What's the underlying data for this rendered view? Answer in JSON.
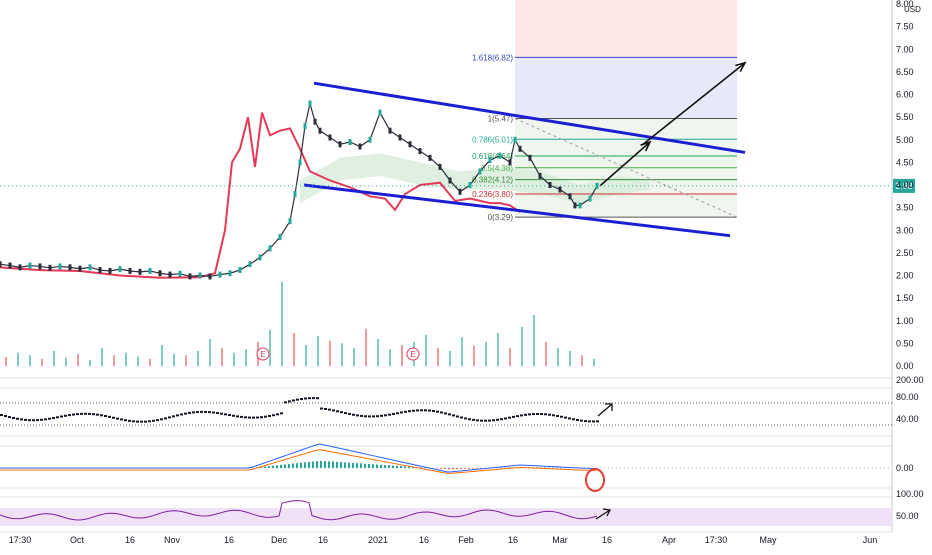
{
  "chart_data": {
    "type": "candlestick",
    "currency_label": "USD",
    "price_axis": {
      "range": [
        0,
        8
      ],
      "ticks": [
        "8.00",
        "7.50",
        "7.00",
        "6.50",
        "6.00",
        "5.50",
        "5.00",
        "4.50",
        "4.00",
        "3.50",
        "3.00",
        "2.50",
        "2.00",
        "1.50",
        "1.00",
        "0.50",
        "0.00"
      ],
      "current_price": "3.98"
    },
    "time_axis": {
      "labels": [
        "17:30",
        "Oct",
        "16",
        "Nov",
        "16",
        "Dec",
        "16",
        "2021",
        "16",
        "Feb",
        "16",
        "Mar",
        "16",
        "Apr",
        "17:30",
        "May",
        "Jun"
      ]
    },
    "fibonacci": {
      "levels": [
        {
          "label": "1.618(6.82)",
          "value": 6.82,
          "color": "#3346c8"
        },
        {
          "label": "1(5.47)",
          "value": 5.47,
          "color": "#555555"
        },
        {
          "label": "0.786(5.01)",
          "value": 5.01,
          "color": "#26a69a"
        },
        {
          "label": "0.618(4.64)",
          "value": 4.64,
          "color": "#22a35a"
        },
        {
          "label": "0.5(4.38)",
          "value": 4.38,
          "color": "#4caf50"
        },
        {
          "label": "0.382(4.12)",
          "value": 4.12,
          "color": "#388e3c"
        },
        {
          "label": "0.236(3.80)",
          "value": 3.8,
          "color": "#d32f2f"
        },
        {
          "label": "0(3.29)",
          "value": 3.29,
          "color": "#555555"
        }
      ]
    },
    "price_series": [
      [
        0,
        2.25
      ],
      [
        10,
        2.22
      ],
      [
        20,
        2.18
      ],
      [
        30,
        2.22
      ],
      [
        40,
        2.2
      ],
      [
        50,
        2.17
      ],
      [
        60,
        2.2
      ],
      [
        70,
        2.18
      ],
      [
        80,
        2.15
      ],
      [
        90,
        2.18
      ],
      [
        100,
        2.12
      ],
      [
        110,
        2.1
      ],
      [
        120,
        2.14
      ],
      [
        130,
        2.1
      ],
      [
        140,
        2.08
      ],
      [
        150,
        2.1
      ],
      [
        160,
        2.05
      ],
      [
        170,
        2.02
      ],
      [
        180,
        2.04
      ],
      [
        190,
        1.98
      ],
      [
        200,
        2.0
      ],
      [
        210,
        1.98
      ],
      [
        220,
        2.02
      ],
      [
        230,
        2.05
      ],
      [
        240,
        2.12
      ],
      [
        250,
        2.25
      ],
      [
        260,
        2.4
      ],
      [
        270,
        2.6
      ],
      [
        280,
        2.85
      ],
      [
        290,
        3.2
      ],
      [
        295,
        3.8
      ],
      [
        300,
        4.5
      ],
      [
        305,
        5.3
      ],
      [
        310,
        5.8
      ],
      [
        315,
        5.4
      ],
      [
        320,
        5.2
      ],
      [
        330,
        5.05
      ],
      [
        340,
        4.9
      ],
      [
        350,
        4.95
      ],
      [
        360,
        4.85
      ],
      [
        370,
        5.0
      ],
      [
        380,
        5.6
      ],
      [
        390,
        5.2
      ],
      [
        400,
        5.05
      ],
      [
        410,
        4.9
      ],
      [
        420,
        4.75
      ],
      [
        430,
        4.6
      ],
      [
        440,
        4.4
      ],
      [
        450,
        4.1
      ],
      [
        460,
        3.85
      ],
      [
        470,
        4.0
      ],
      [
        480,
        4.3
      ],
      [
        490,
        4.55
      ],
      [
        500,
        4.65
      ],
      [
        510,
        4.5
      ],
      [
        515,
        5.0
      ],
      [
        520,
        4.8
      ],
      [
        530,
        4.6
      ],
      [
        540,
        4.2
      ],
      [
        550,
        4.0
      ],
      [
        560,
        3.9
      ],
      [
        570,
        3.75
      ],
      [
        575,
        3.55
      ],
      [
        580,
        3.55
      ],
      [
        590,
        3.7
      ],
      [
        597,
        3.98
      ]
    ],
    "ichimoku_line": [
      [
        0,
        2.18
      ],
      [
        40,
        2.12
      ],
      [
        80,
        2.1
      ],
      [
        120,
        2.0
      ],
      [
        160,
        1.95
      ],
      [
        200,
        1.96
      ],
      [
        215,
        2.05
      ],
      [
        225,
        3.0
      ],
      [
        232,
        4.5
      ],
      [
        240,
        4.8
      ],
      [
        248,
        5.5
      ],
      [
        255,
        4.4
      ],
      [
        262,
        5.6
      ],
      [
        270,
        5.1
      ],
      [
        280,
        5.2
      ],
      [
        290,
        5.25
      ],
      [
        300,
        4.8
      ],
      [
        310,
        4.3
      ],
      [
        330,
        4.1
      ],
      [
        350,
        3.95
      ],
      [
        370,
        3.75
      ],
      [
        385,
        3.7
      ],
      [
        395,
        3.45
      ],
      [
        405,
        3.8
      ],
      [
        420,
        4.0
      ],
      [
        440,
        4.05
      ],
      [
        455,
        3.65
      ],
      [
        470,
        3.7
      ],
      [
        490,
        3.6
      ],
      [
        500,
        3.6
      ],
      [
        510,
        3.55
      ],
      [
        520,
        3.4
      ]
    ],
    "channel": {
      "upper": [
        [
          314,
          6.25
        ],
        [
          745,
          4.72
        ]
      ],
      "lower": [
        [
          304,
          4.0
        ],
        [
          730,
          2.88
        ]
      ]
    },
    "projection_arrows": [
      [
        [
          600,
          3.98
        ],
        [
          650,
          4.95
        ]
      ],
      [
        [
          642,
          4.88
        ],
        [
          745,
          6.7
        ]
      ]
    ],
    "volume": [
      0.15,
      0.22,
      0.18,
      0.12,
      0.25,
      0.14,
      0.2,
      0.1,
      0.3,
      0.18,
      0.22,
      0.16,
      0.12,
      0.35,
      0.2,
      0.18,
      0.25,
      0.45,
      0.3,
      0.22,
      0.28,
      0.4,
      0.6,
      1.4,
      0.55,
      0.35,
      0.5,
      0.42,
      0.38,
      0.3,
      0.62,
      0.45,
      0.28,
      0.35,
      0.4,
      0.52,
      0.3,
      0.25,
      0.48,
      0.34,
      0.4,
      0.55,
      0.3,
      0.65,
      0.85,
      0.4,
      0.3,
      0.25,
      0.18,
      0.12
    ],
    "volume_ticks": [
      "1.00",
      "0.50",
      "0.00"
    ],
    "indicator_1": {
      "ticks": [
        "200.00",
        "80.00",
        "40.00"
      ]
    },
    "indicator_2": {
      "ticks": [
        "0.00"
      ]
    },
    "indicator_3": {
      "ticks": [
        "100.00",
        "50.00"
      ]
    }
  }
}
